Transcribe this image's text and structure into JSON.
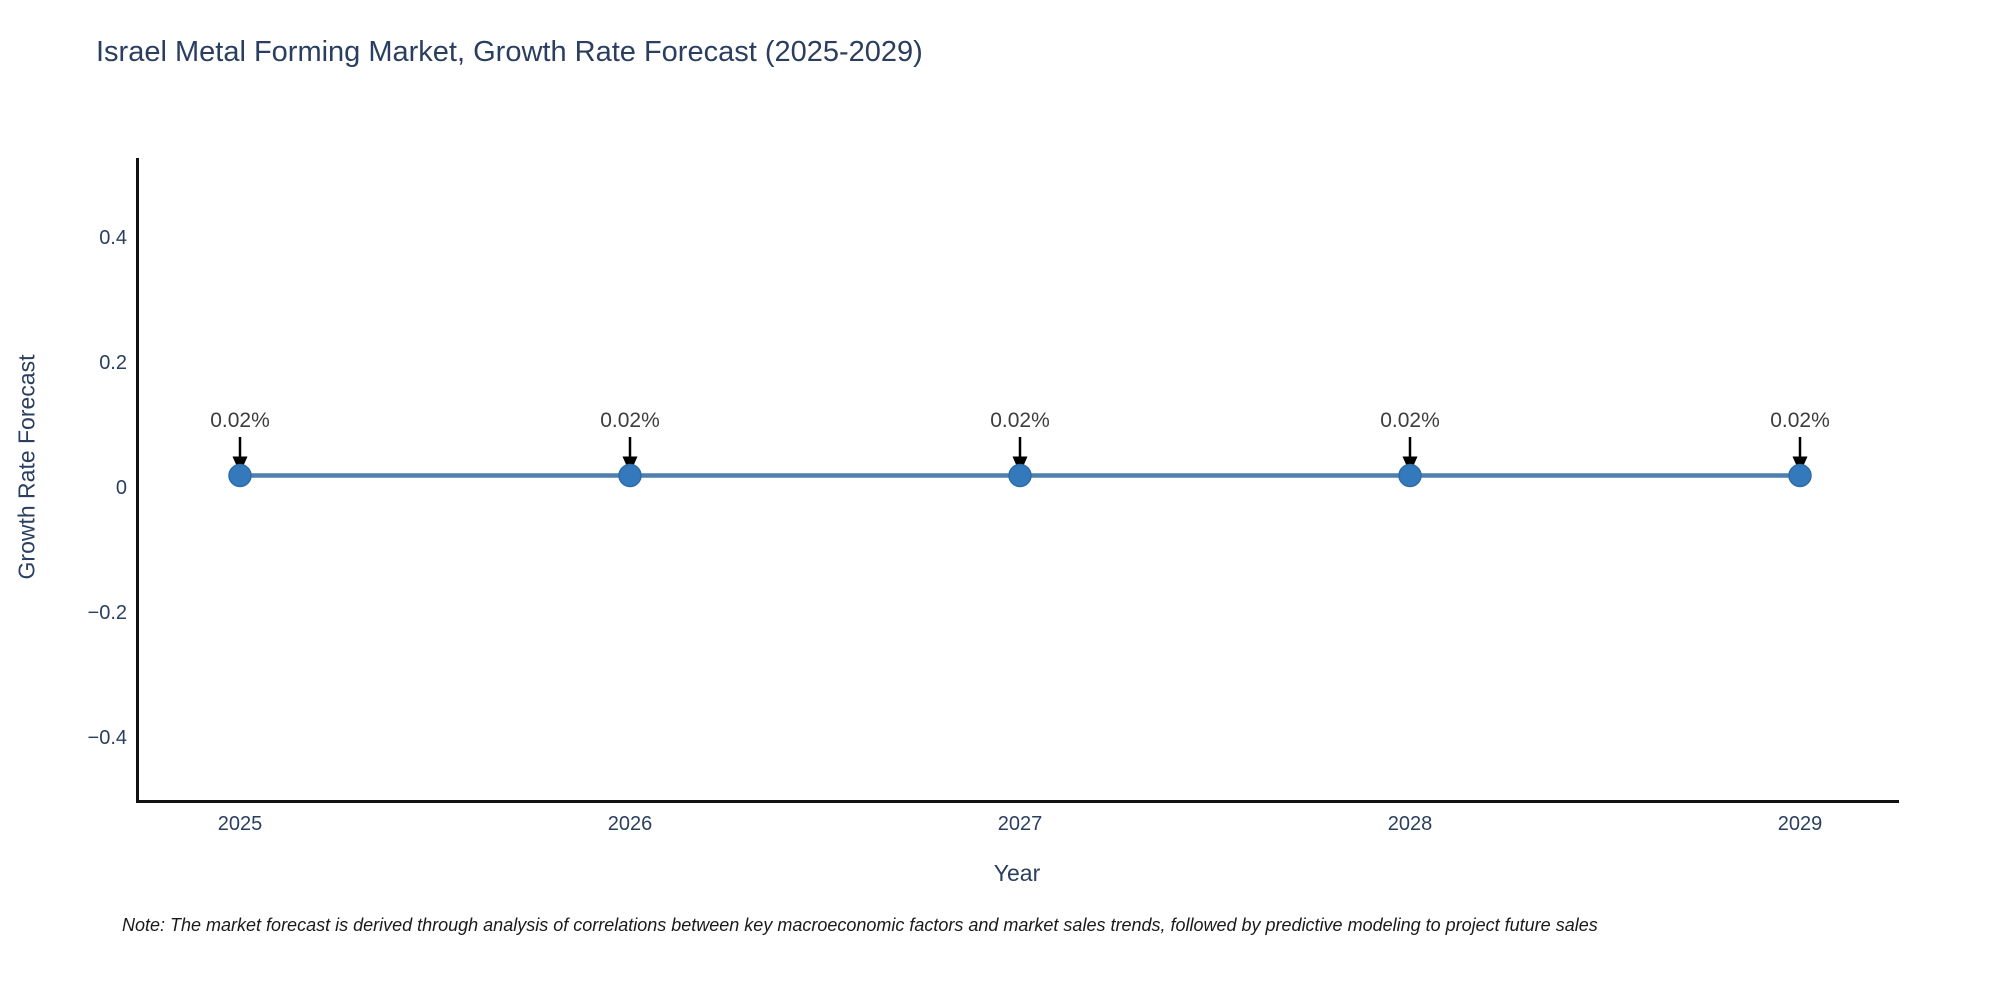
{
  "chart": {
    "note": "Note: The market forecast is derived through analysis of correlations between key macroeconomic factors and market sales trends, followed by predictive modeling to project future sales"
  },
  "chart_data": {
    "type": "line",
    "title": "Israel Metal Forming Market, Growth Rate Forecast (2025-2029)",
    "x": [
      "2025",
      "2026",
      "2027",
      "2028",
      "2029"
    ],
    "series": [
      {
        "name": "Growth Rate Forecast",
        "values": [
          0.02,
          0.02,
          0.02,
          0.02,
          0.02
        ]
      }
    ],
    "point_labels": [
      "0.02%",
      "0.02%",
      "0.02%",
      "0.02%",
      "0.02%"
    ],
    "xlabel": "Year",
    "ylabel": "Growth Rate Forecast",
    "ytick_values": [
      0.4,
      0.2,
      0,
      -0.2,
      -0.4
    ],
    "ytick_labels": [
      "0.4",
      "0.2",
      "0",
      "−0.2",
      "−0.4"
    ],
    "ylim": [
      -0.5,
      0.53
    ],
    "grid": false,
    "legend": "none",
    "colors": {
      "line": "#4e7fae",
      "marker": "#3579bd",
      "marker_edge": "#2e6ca8",
      "arrow": "#000000",
      "axis": "#111111",
      "text": "#2a3f5f",
      "annotation": "#3d3d3d"
    }
  }
}
